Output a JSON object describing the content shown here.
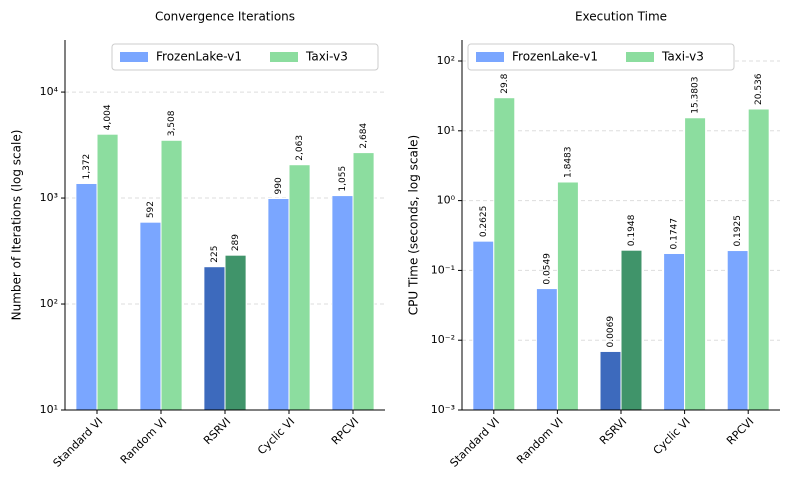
{
  "chart_data": [
    {
      "type": "bar",
      "title": "Convergence Iterations",
      "y_label": "Number of Iterations (log scale)",
      "categories": [
        "Standard VI",
        "Random VI",
        "RSRVI",
        "Cyclic VI",
        "RPCVI"
      ],
      "series": [
        {
          "name": "FrozenLake-v1",
          "color": "#7aa6ff",
          "colors": [
            "#7aa6ff",
            "#7aa6ff",
            "#3d6abd",
            "#7aa6ff",
            "#7aa6ff"
          ],
          "values": [
            1372,
            592,
            225,
            990,
            1055
          ],
          "value_labels": [
            "1,372",
            "592",
            "225",
            "990",
            "1,055"
          ]
        },
        {
          "name": "Taxi-v3",
          "color": "#8cdd9f",
          "colors": [
            "#8cdd9f",
            "#8cdd9f",
            "#40946a",
            "#8cdd9f",
            "#8cdd9f"
          ],
          "values": [
            4004,
            3508,
            289,
            2063,
            2684
          ],
          "value_labels": [
            "4,004",
            "3,508",
            "289",
            "2,063",
            "2,684"
          ]
        }
      ],
      "log_y": true,
      "ylim": [
        10,
        31000
      ],
      "yticks": [
        {
          "value": 10,
          "label": "10¹"
        },
        {
          "value": 100,
          "label": "10²"
        },
        {
          "value": 1000,
          "label": "10³"
        },
        {
          "value": 10000,
          "label": "10⁴"
        }
      ],
      "grid": true,
      "legend": "upper right"
    },
    {
      "type": "bar",
      "title": "Execution Time",
      "y_label": "CPU Time (seconds, log scale)",
      "categories": [
        "Standard VI",
        "Random VI",
        "RSRVI",
        "Cyclic VI",
        "RPCVI"
      ],
      "series": [
        {
          "name": "FrozenLake-v1",
          "color": "#7aa6ff",
          "colors": [
            "#7aa6ff",
            "#7aa6ff",
            "#3d6abd",
            "#7aa6ff",
            "#7aa6ff"
          ],
          "values": [
            0.2625,
            0.0549,
            0.0069,
            0.1747,
            0.1925
          ]
        },
        {
          "name": "Taxi-v3",
          "color": "#8cdd9f",
          "colors": [
            "#8cdd9f",
            "#8cdd9f",
            "#40946a",
            "#8cdd9f",
            "#8cdd9f"
          ],
          "values": [
            29.8,
            1.8483,
            0.1948,
            15.3803,
            20.536
          ]
        }
      ],
      "log_y": true,
      "ylim": [
        0.001,
        200
      ],
      "yticks": [
        {
          "value": 0.001,
          "label": "10⁻³"
        },
        {
          "value": 0.01,
          "label": "10⁻²"
        },
        {
          "value": 0.1,
          "label": "10⁻¹"
        },
        {
          "value": 1,
          "label": "10⁰"
        },
        {
          "value": 10,
          "label": "10¹"
        },
        {
          "value": 100,
          "label": "10²"
        }
      ],
      "grid": true,
      "legend": "upper left"
    }
  ]
}
